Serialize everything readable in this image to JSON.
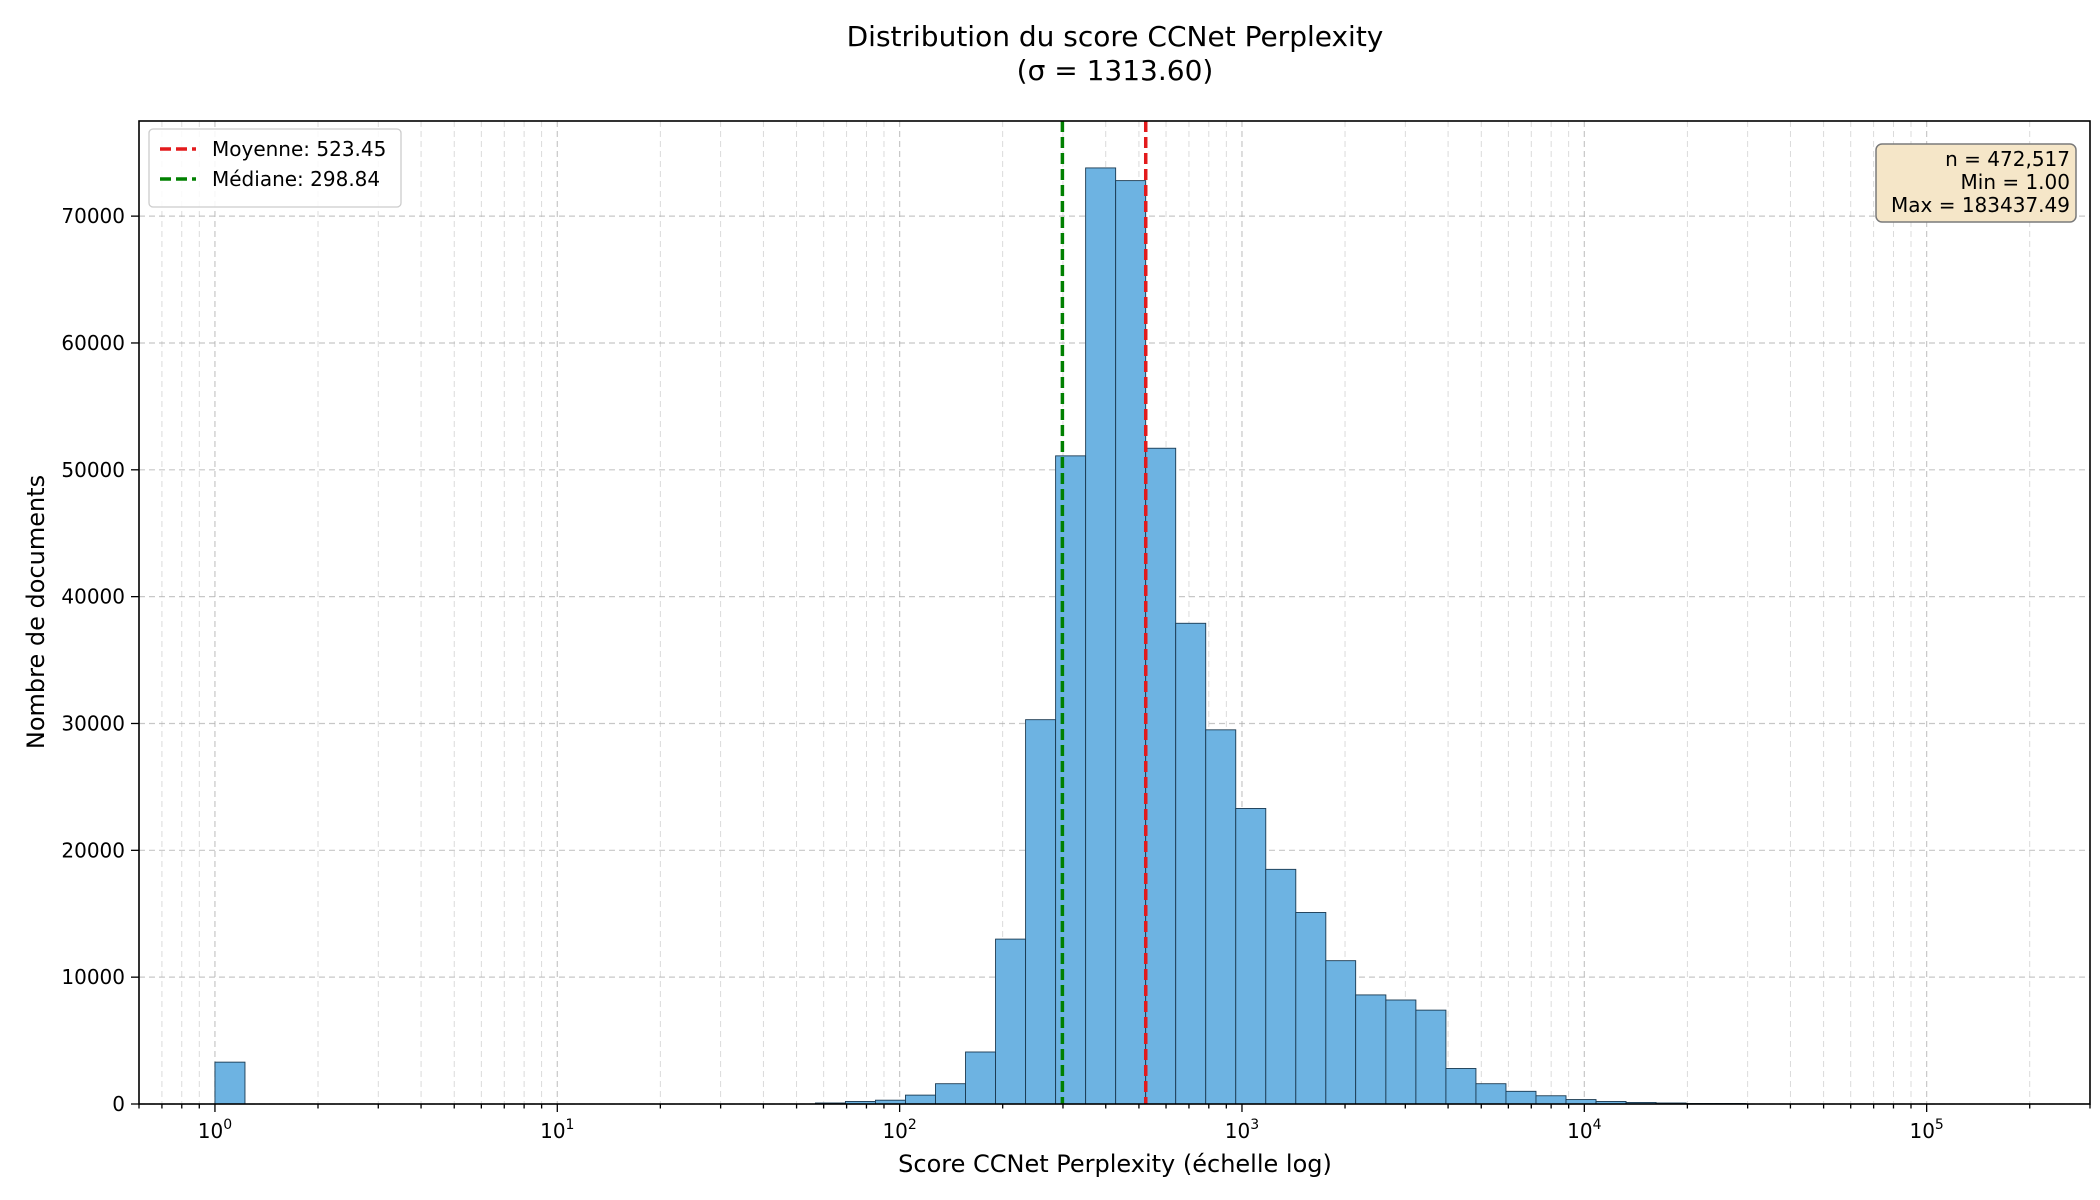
{
  "chart_data": {
    "type": "bar",
    "title": "Distribution du score CCNet Perplexity",
    "subtitle": "(σ = 1313.60)",
    "xlabel": "Score CCNet Perplexity (échelle log)",
    "ylabel": "Nombre de documents",
    "x_scale": "log",
    "xlim": [
      0.6,
      300000
    ],
    "ylim": [
      0,
      77500
    ],
    "grid": true,
    "x_ticks": [
      {
        "base": "10",
        "exp": "0",
        "value": 1
      },
      {
        "base": "10",
        "exp": "1",
        "value": 10
      },
      {
        "base": "10",
        "exp": "2",
        "value": 100
      },
      {
        "base": "10",
        "exp": "3",
        "value": 1000
      },
      {
        "base": "10",
        "exp": "4",
        "value": 10000
      },
      {
        "base": "10",
        "exp": "5",
        "value": 100000
      }
    ],
    "y_ticks": [
      0,
      10000,
      20000,
      30000,
      40000,
      50000,
      60000,
      70000
    ],
    "bin_edges_log10": [
      0,
      0.0877,
      0.1754,
      0.2631,
      0.3508,
      0.4385,
      0.5262,
      0.6139,
      0.7016,
      0.7893,
      0.877,
      0.9647,
      1.0524,
      1.1401,
      1.2278,
      1.3155,
      1.4032,
      1.4909,
      1.5786,
      1.6663,
      1.754,
      1.8417,
      1.9294,
      2.0171,
      2.1048,
      2.1925,
      2.2802,
      2.3679,
      2.4556,
      2.5433,
      2.631,
      2.7187,
      2.8064,
      2.8941,
      2.9818,
      3.0695,
      3.1572,
      3.2449,
      3.3321,
      3.4203,
      3.508,
      3.5957,
      3.6834,
      3.7711,
      3.8588,
      3.9465,
      4.0342,
      4.1219,
      4.2096,
      4.2973,
      4.385,
      4.4727,
      4.5604,
      4.6481,
      4.7358,
      4.8235,
      4.9112,
      4.9989,
      5.0866,
      5.1743,
      5.2635
    ],
    "values": [
      3300,
      0,
      0,
      0,
      0,
      0,
      0,
      0,
      0,
      0,
      0,
      0,
      0,
      0,
      0,
      0,
      0,
      0,
      0,
      0,
      80,
      200,
      300,
      700,
      1600,
      4100,
      13000,
      30300,
      51100,
      73800,
      72800,
      51700,
      37900,
      29500,
      23300,
      18500,
      15100,
      11300,
      8600,
      8200,
      7400,
      2800,
      1600,
      1000,
      650,
      350,
      200,
      120,
      80,
      40,
      40,
      0,
      0,
      0,
      0,
      0,
      0,
      0,
      0,
      0
    ],
    "bar_color": "#6db3e2",
    "bar_edge_color": "#1a3a52",
    "reference_lines": [
      {
        "label": "Moyenne: 523.45",
        "value": 523.45,
        "color": "#e31a1c"
      },
      {
        "label": "Médiane: 298.84",
        "value": 298.84,
        "color": "#008000"
      }
    ],
    "legend_position": "top-left",
    "stats_box": {
      "lines": [
        "n = 472,517",
        "Min = 1.00",
        "Max = 183437.49"
      ],
      "position": "top-right",
      "background": "#f5e6c8"
    }
  }
}
